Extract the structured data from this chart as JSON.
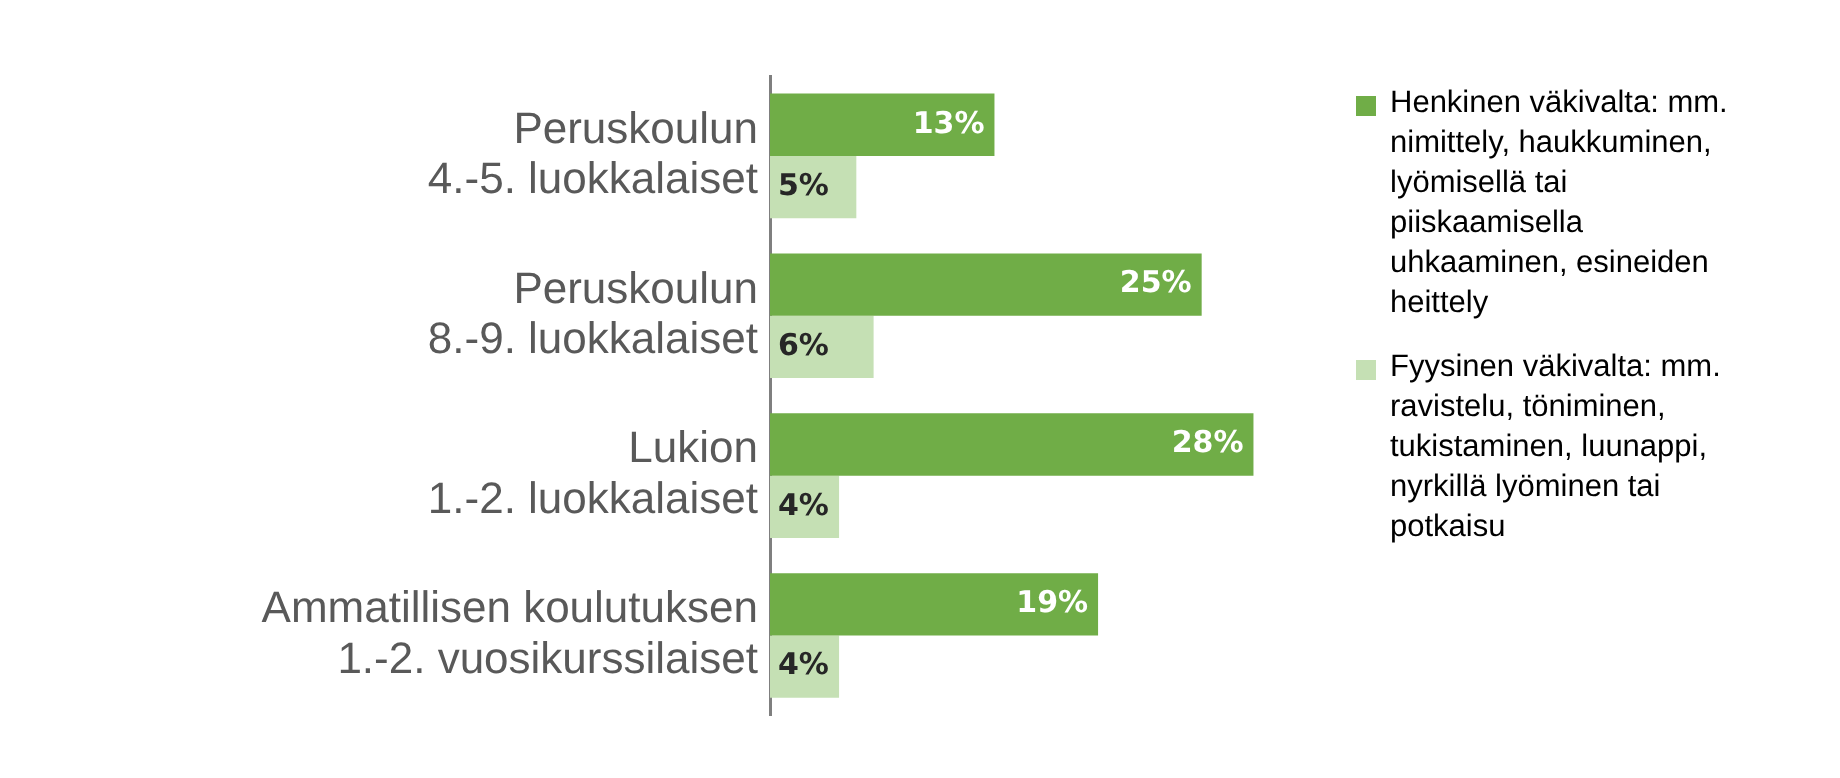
{
  "chart_data": {
    "type": "bar",
    "orientation": "horizontal",
    "legend": "right",
    "grid": false,
    "tick_labels": "y",
    "categories": [
      "Peruskoulun\n4.-5. luokkalaiset",
      "Peruskoulun\n8.-9. luokkalaiset",
      "Lukion\n1.-2. luokkalaiset",
      "Ammatillisen koulutuksen\n1.-2. vuosikurssilaiset"
    ],
    "series": [
      {
        "name": "Henkinen väkivalta: mm. nimittely, haukkuminen, lyömisellä tai piiskaamisella uhkaaminen, esineiden heittely",
        "color": "#70ad47",
        "values": [
          13,
          25,
          28,
          19
        ],
        "value_labels": [
          "13%",
          "25%",
          "28%",
          "19%"
        ]
      },
      {
        "name": "Fyysinen väkivalta: mm. ravistelu, töniminen, tukistaminen, luunappi, nyrkillä lyöminen tai potkaisu",
        "color": "#c5e0b4",
        "values": [
          5,
          6,
          4,
          4
        ],
        "value_labels": [
          "5%",
          "6%",
          "4%",
          "4%"
        ]
      }
    ]
  }
}
